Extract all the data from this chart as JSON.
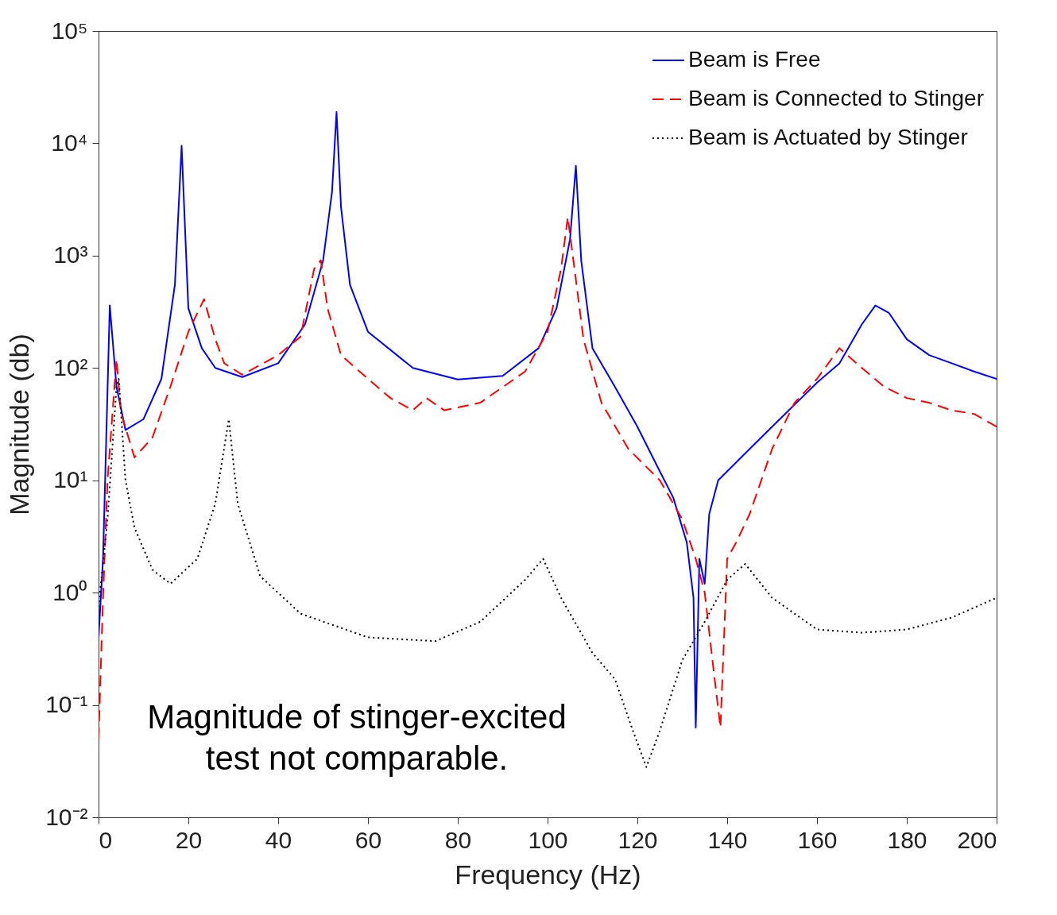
{
  "chart_data": {
    "type": "line",
    "xlabel": "Frequency (Hz)",
    "ylabel": "Magnitude (db)",
    "log": "y",
    "legend": "top right",
    "grid": false,
    "xlim": [
      0,
      200
    ],
    "xticks": [
      0,
      20,
      40,
      60,
      80,
      100,
      120,
      140,
      160,
      180,
      200
    ],
    "ylim": [
      0.01,
      100000
    ],
    "yticks": [
      {
        "value": 0.01,
        "label": "10⁻²"
      },
      {
        "value": 0.1,
        "label": "10⁻¹"
      },
      {
        "value": 1,
        "label": "10⁰"
      },
      {
        "value": 10,
        "label": "10¹"
      },
      {
        "value": 100,
        "label": "10²"
      },
      {
        "value": 1000,
        "label": "10³"
      },
      {
        "value": 10000,
        "label": "10⁴"
      },
      {
        "value": 100000,
        "label": "10⁵"
      }
    ],
    "annotations": [
      "Magnitude of stinger-excited\ntest not comparable."
    ],
    "series": [
      {
        "name": "Beam is Free",
        "color": "#0000ff",
        "line_style": "solid",
        "x": [
          0,
          1,
          2.5,
          4,
          6,
          10,
          14,
          17,
          18.5,
          20,
          23,
          26,
          32,
          40,
          46,
          50,
          52,
          53,
          54,
          56,
          60,
          70,
          80,
          90,
          98,
          102,
          105,
          106.3,
          107.5,
          110,
          115,
          120,
          125,
          128,
          131,
          132.5,
          133,
          133.8,
          135,
          136,
          138,
          145,
          150,
          160,
          165,
          170,
          173,
          176,
          180,
          185,
          190,
          195,
          200
        ],
        "values": [
          0.4,
          2,
          360,
          68,
          28,
          35,
          80,
          550,
          9500,
          340,
          150,
          100,
          83,
          110,
          245,
          900,
          3700,
          19000,
          2700,
          550,
          210,
          100,
          79,
          85,
          150,
          340,
          1400,
          6300,
          900,
          150,
          68,
          30,
          12,
          7,
          2.8,
          0.9,
          0.063,
          2,
          1.2,
          5,
          10,
          19,
          30,
          74,
          110,
          245,
          360,
          310,
          180,
          130,
          110,
          93,
          80
        ]
      },
      {
        "name": "Beam is Connected to Stinger",
        "color": "#ff0000",
        "line_style": "dashed",
        "x": [
          0,
          1,
          2,
          4,
          5,
          8,
          12,
          16,
          20,
          23.5,
          26,
          28,
          32,
          40,
          45,
          48,
          49.5,
          51,
          54,
          60,
          65,
          70,
          73,
          77,
          85,
          95,
          100,
          103,
          104.5,
          106,
          108,
          112,
          118,
          125,
          130,
          133,
          135,
          137,
          138.5,
          140,
          142,
          145,
          150,
          155,
          160,
          165,
          170,
          175,
          180,
          185,
          190,
          195,
          200
        ],
        "values": [
          0.05,
          0.9,
          10,
          120,
          40,
          16,
          24,
          68,
          210,
          410,
          180,
          110,
          87,
          130,
          190,
          760,
          910,
          340,
          130,
          80,
          54,
          42,
          54,
          42,
          49,
          93,
          210,
          760,
          2200,
          760,
          180,
          49,
          19,
          10,
          4.5,
          2,
          1,
          0.2,
          0.063,
          2,
          2.8,
          5,
          19,
          49,
          80,
          150,
          100,
          68,
          54,
          49,
          42,
          39,
          30
        ]
      },
      {
        "name": "Beam is Actuated by Stinger",
        "color": "#000000",
        "line_style": "dotted",
        "x": [
          0,
          2,
          4,
          4.5,
          6,
          8,
          12,
          16,
          22,
          26,
          29,
          31,
          36,
          45,
          60,
          75,
          85,
          95,
          99,
          103,
          110,
          115,
          119,
          122,
          125,
          130,
          135,
          140,
          144,
          150,
          160,
          170,
          180,
          190,
          200
        ],
        "values": [
          0.75,
          4.5,
          68,
          80,
          10,
          3.8,
          1.6,
          1.2,
          2,
          6.2,
          35,
          6.2,
          1.4,
          0.65,
          0.4,
          0.37,
          0.55,
          1.3,
          2,
          0.9,
          0.29,
          0.17,
          0.059,
          0.028,
          0.059,
          0.25,
          0.55,
          1.3,
          1.8,
          0.9,
          0.47,
          0.44,
          0.47,
          0.6,
          0.9
        ]
      }
    ]
  }
}
